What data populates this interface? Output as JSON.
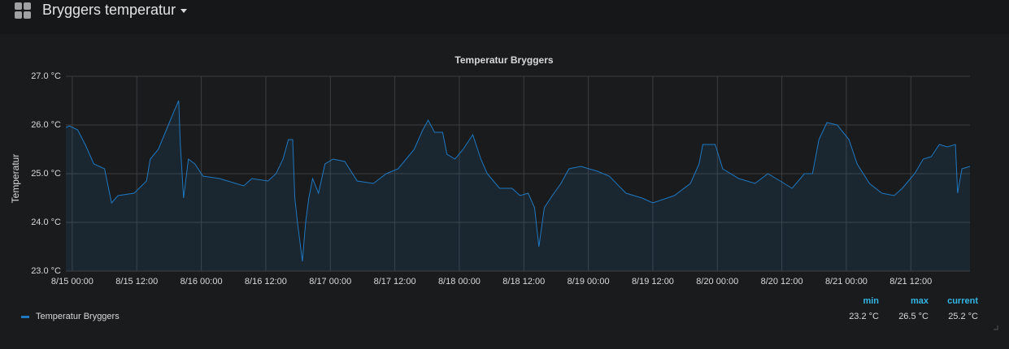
{
  "dashboard": {
    "title": "Bryggers temperatur"
  },
  "chart_data": {
    "type": "line",
    "title": "Temperatur Bryggers",
    "ylabel": "Temperatur",
    "x": [
      "8/14 22:48",
      "8/14 23:30",
      "8/15 01:00",
      "8/15 02:24",
      "8/15 04:00",
      "8/15 06:00",
      "8/15 07:18",
      "8/15 08:30",
      "8/15 11:30",
      "8/15 13:48",
      "8/15 14:30",
      "8/15 16:00",
      "8/15 17:30",
      "8/15 19:00",
      "8/15 19:48",
      "8/15 20:06",
      "8/15 20:42",
      "8/15 21:36",
      "8/15 22:48",
      "8/16 00:18",
      "8/16 03:24",
      "8/16 06:24",
      "8/16 07:54",
      "8/16 09:24",
      "8/16 12:24",
      "8/16 13:54",
      "8/16 15:12",
      "8/16 16:12",
      "8/16 17:00",
      "8/16 17:24",
      "8/16 17:54",
      "8/16 18:48",
      "8/16 19:24",
      "8/16 20:00",
      "8/16 20:42",
      "8/16 21:48",
      "8/16 23:00",
      "8/17 00:30",
      "8/17 02:42",
      "8/17 05:00",
      "8/17 08:00",
      "8/17 10:24",
      "8/17 12:36",
      "8/17 14:06",
      "8/17 15:36",
      "8/17 17:12",
      "8/17 18:12",
      "8/17 19:24",
      "8/17 20:54",
      "8/17 21:42",
      "8/17 23:12",
      "8/18 00:42",
      "8/18 02:30",
      "8/18 04:00",
      "8/18 05:12",
      "8/18 07:30",
      "8/18 09:48",
      "8/18 11:18",
      "8/18 12:48",
      "8/18 14:00",
      "8/18 14:48",
      "8/18 15:48",
      "8/18 17:18",
      "8/18 18:54",
      "8/18 20:24",
      "8/18 22:36",
      "8/19 01:42",
      "8/19 03:54",
      "8/19 07:00",
      "8/19 10:00",
      "8/19 12:00",
      "8/19 16:00",
      "8/19 19:00",
      "8/19 20:36",
      "8/19 21:18",
      "8/19 23:36",
      "8/20 01:00",
      "8/20 04:00",
      "8/20 07:00",
      "8/20 09:24",
      "8/20 11:42",
      "8/20 13:54",
      "8/20 16:12",
      "8/20 17:42",
      "8/20 18:54",
      "8/20 20:24",
      "8/20 22:18",
      "8/21 00:30",
      "8/21 02:00",
      "8/21 04:18",
      "8/21 06:36",
      "8/21 08:54",
      "8/21 10:24",
      "8/21 12:42",
      "8/21 14:18",
      "8/21 15:48",
      "8/21 17:18",
      "8/21 18:48",
      "8/21 20:18",
      "8/21 20:42",
      "8/21 21:30",
      "8/21 23:00"
    ],
    "series": [
      {
        "name": "Temperatur Bryggers",
        "color": "#1f78c1",
        "values": [
          25.95,
          25.98,
          25.9,
          25.6,
          25.2,
          25.1,
          24.4,
          24.55,
          24.6,
          24.85,
          25.3,
          25.5,
          25.9,
          26.3,
          26.5,
          25.6,
          24.5,
          25.3,
          25.2,
          24.95,
          24.9,
          24.8,
          24.75,
          24.9,
          24.85,
          25.0,
          25.3,
          25.7,
          25.7,
          24.5,
          24.0,
          23.2,
          24.0,
          24.5,
          24.9,
          24.6,
          25.2,
          25.3,
          25.25,
          24.85,
          24.8,
          25.0,
          25.1,
          25.3,
          25.5,
          25.9,
          26.1,
          25.85,
          25.85,
          25.4,
          25.3,
          25.5,
          25.8,
          25.3,
          25.0,
          24.7,
          24.7,
          24.55,
          24.6,
          24.3,
          23.5,
          24.3,
          24.55,
          24.8,
          25.1,
          25.15,
          25.05,
          24.95,
          24.6,
          24.5,
          24.4,
          24.55,
          24.8,
          25.2,
          25.6,
          25.6,
          25.1,
          24.9,
          24.8,
          25.0,
          24.85,
          24.7,
          25.0,
          25.0,
          25.7,
          26.05,
          26.0,
          25.7,
          25.2,
          24.8,
          24.6,
          24.55,
          24.7,
          25.0,
          25.3,
          25.35,
          25.6,
          25.55,
          25.6,
          24.6,
          25.1,
          25.15
        ]
      }
    ],
    "xlim": [
      "8/14 22:48",
      "8/21 23:00"
    ],
    "xticks": [
      "8/15 00:00",
      "8/15 12:00",
      "8/16 00:00",
      "8/16 12:00",
      "8/17 00:00",
      "8/17 12:00",
      "8/18 00:00",
      "8/18 12:00",
      "8/19 00:00",
      "8/19 12:00",
      "8/20 00:00",
      "8/20 12:00",
      "8/21 00:00",
      "8/21 12:00"
    ],
    "ylim": [
      23,
      27
    ],
    "yticks": [
      {
        "value": 23,
        "label": "23.0 °C"
      },
      {
        "value": 24,
        "label": "24.0 °C"
      },
      {
        "value": 25,
        "label": "25.0 °C"
      },
      {
        "value": 26,
        "label": "26.0 °C"
      },
      {
        "value": 27,
        "label": "27.0 °C"
      }
    ],
    "grid": true,
    "stats": [
      {
        "name": "min",
        "value": 23.2,
        "label": "23.2 °C"
      },
      {
        "name": "max",
        "value": 26.5,
        "label": "26.5 °C"
      },
      {
        "name": "current",
        "value": 25.2,
        "label": "25.2 °C"
      }
    ]
  }
}
